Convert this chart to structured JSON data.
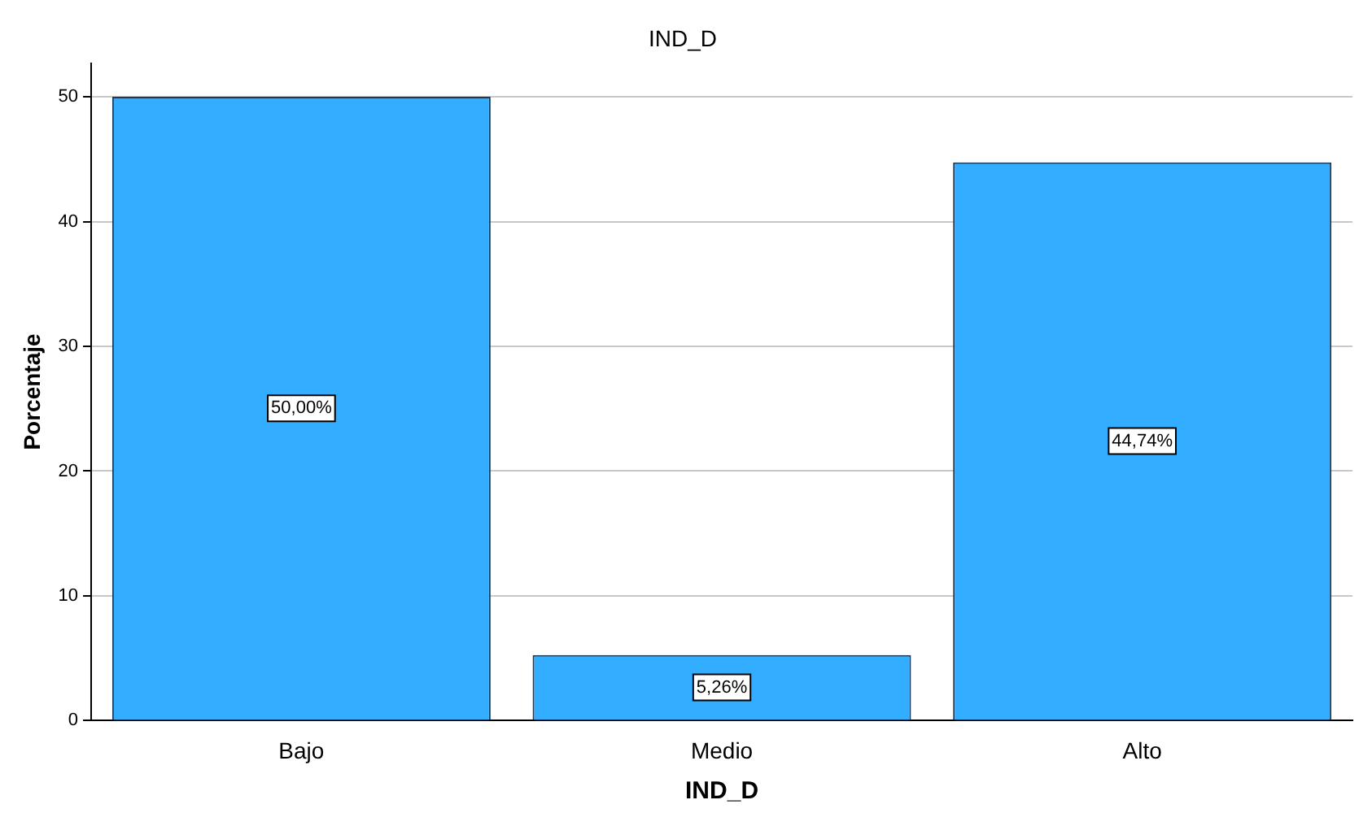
{
  "chart_data": {
    "type": "bar",
    "title": "IND_D",
    "xlabel": "IND_D",
    "ylabel": "Porcentaje",
    "categories": [
      "Bajo",
      "Medio",
      "Alto"
    ],
    "values": [
      50,
      5.26,
      44.74
    ],
    "value_labels": [
      "50,00%",
      "5,26%",
      "44,74%"
    ],
    "color": "#33adff",
    "ylim": [
      0,
      52.7
    ],
    "yticks": [
      0,
      10,
      20,
      30,
      40,
      50
    ],
    "grid": "y",
    "legend": false
  }
}
